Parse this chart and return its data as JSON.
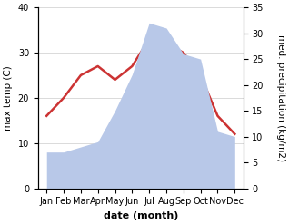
{
  "months": [
    "Jan",
    "Feb",
    "Mar",
    "Apr",
    "May",
    "Jun",
    "Jul",
    "Aug",
    "Sep",
    "Oct",
    "Nov",
    "Dec"
  ],
  "temp": [
    16,
    20,
    25,
    27,
    24,
    27,
    33,
    32,
    30,
    25,
    16,
    12
  ],
  "precip": [
    7,
    7,
    8,
    9,
    15,
    22,
    32,
    31,
    26,
    25,
    11,
    10
  ],
  "temp_color": "#cc3333",
  "precip_color": "#b8c8e8",
  "title": "",
  "xlabel": "date (month)",
  "ylabel_left": "max temp (C)",
  "ylabel_right": "med. precipitation (kg/m2)",
  "ylim_left": [
    0,
    40
  ],
  "ylim_right": [
    0,
    35
  ],
  "yticks_left": [
    0,
    10,
    20,
    30,
    40
  ],
  "yticks_right": [
    0,
    5,
    10,
    15,
    20,
    25,
    30,
    35
  ],
  "figsize": [
    3.18,
    2.47
  ],
  "dpi": 100,
  "bg_color": "#ffffff",
  "line_width": 1.8,
  "xlabel_fontsize": 8,
  "ylabel_fontsize": 7.5,
  "tick_fontsize": 7
}
